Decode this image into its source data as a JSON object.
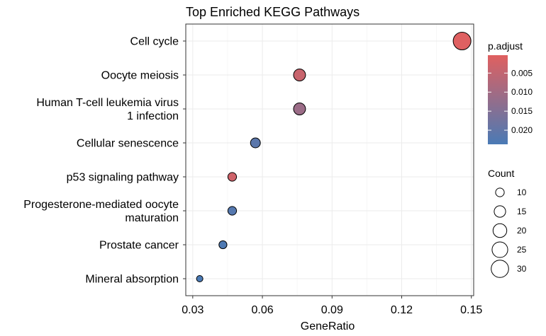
{
  "chart_data": {
    "type": "scatter",
    "title": "Top Enriched KEGG Pathways",
    "xlabel": "GeneRatio",
    "ylabel": "",
    "xlim": [
      0.027,
      0.151
    ],
    "xticks": [
      0.03,
      0.06,
      0.09,
      0.12,
      0.15
    ],
    "xtick_labels": [
      "0.03",
      "0.06",
      "0.09",
      "0.12",
      "0.15"
    ],
    "grid": true,
    "categories": [
      "Cell cycle",
      "Oocyte meiosis",
      "Human T-cell leukemia virus 1 infection",
      "Cellular senescence",
      "p53 signaling pathway",
      "Progesterone-mediated oocyte maturation",
      "Prostate cancer",
      "Mineral absorption"
    ],
    "category_label_lines": [
      [
        "Cell cycle"
      ],
      [
        "Oocyte meiosis"
      ],
      [
        "Human T-cell leukemia virus",
        "1 infection"
      ],
      [
        "Cellular senescence"
      ],
      [
        "p53 signaling pathway"
      ],
      [
        "Progesterone-mediated oocyte",
        "maturation"
      ],
      [
        "Prostate cancer"
      ],
      [
        "Mineral absorption"
      ]
    ],
    "points": [
      {
        "category": "Cell cycle",
        "gene_ratio": 0.146,
        "count": 31,
        "p_adjust": 0.0005
      },
      {
        "category": "Oocyte meiosis",
        "gene_ratio": 0.076,
        "count": 16,
        "p_adjust": 0.004
      },
      {
        "category": "Human T-cell leukemia virus 1 infection",
        "gene_ratio": 0.076,
        "count": 16,
        "p_adjust": 0.011
      },
      {
        "category": "Cellular senescence",
        "gene_ratio": 0.057,
        "count": 12,
        "p_adjust": 0.021
      },
      {
        "category": "p53 signaling pathway",
        "gene_ratio": 0.047,
        "count": 10,
        "p_adjust": 0.003
      },
      {
        "category": "Progesterone-mediated oocyte maturation",
        "gene_ratio": 0.047,
        "count": 10,
        "p_adjust": 0.022
      },
      {
        "category": "Prostate cancer",
        "gene_ratio": 0.043,
        "count": 9,
        "p_adjust": 0.023
      },
      {
        "category": "Mineral absorption",
        "gene_ratio": 0.033,
        "count": 7,
        "p_adjust": 0.024
      }
    ],
    "color_legend": {
      "title": "p.adjust",
      "range": [
        0.0003,
        0.0237
      ],
      "low_color": "#e06060",
      "high_color": "#4a7ab5",
      "ticks": [
        0.005,
        0.01,
        0.015,
        0.02
      ],
      "tick_labels": [
        "0.005",
        "0.010",
        "0.015",
        "0.020"
      ],
      "placement": "right"
    },
    "size_legend": {
      "title": "Count",
      "values": [
        10,
        15,
        20,
        25,
        30
      ],
      "labels": [
        "10",
        "15",
        "20",
        "25",
        "30"
      ],
      "placement": "right"
    }
  }
}
